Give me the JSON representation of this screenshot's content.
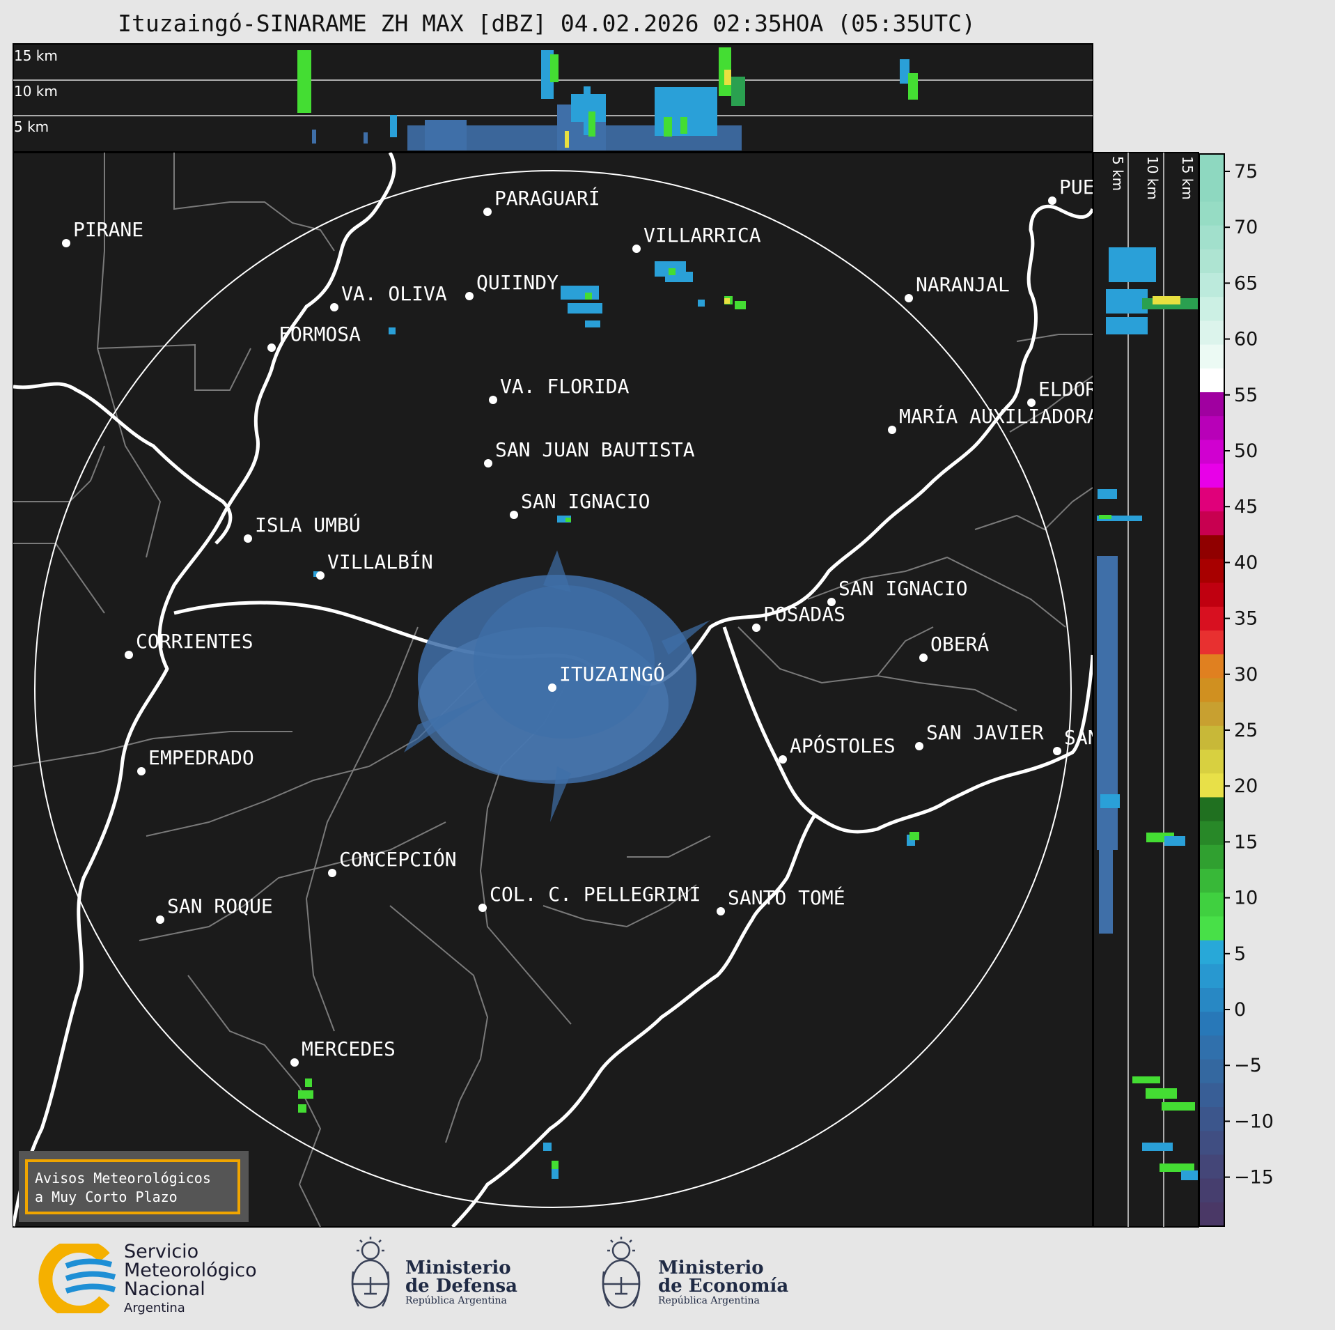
{
  "title": "Ituzaingó-SINARAME ZH MAX [dBZ] 04.02.2026 02:35HOA (05:35UTC)",
  "top_panel": {
    "height_labels": [
      "15 km",
      "10 km",
      "5 km"
    ]
  },
  "side_panel": {
    "height_labels": [
      "5 km",
      "10 km",
      "15 km"
    ]
  },
  "colorbar": {
    "ticks": [
      "75",
      "70",
      "65",
      "60",
      "55",
      "50",
      "45",
      "40",
      "35",
      "30",
      "25",
      "20",
      "15",
      "10",
      "5",
      "0",
      "−5",
      "−10",
      "−15"
    ],
    "unit": "dBZ"
  },
  "cities": [
    {
      "name": "PIRANE"
    },
    {
      "name": "PARAGUARÍ"
    },
    {
      "name": "VILLARRICA"
    },
    {
      "name": "QUIINDY"
    },
    {
      "name": "VA. OLIVA"
    },
    {
      "name": "FORMOSA"
    },
    {
      "name": "NARANJAL"
    },
    {
      "name": "VA. FLORIDA"
    },
    {
      "name": "ELDORADO"
    },
    {
      "name": "MARÍA AUXILIADORA"
    },
    {
      "name": "SAN JUAN BAUTISTA"
    },
    {
      "name": "SAN IGNACIO"
    },
    {
      "name": "ISLA UMBÚ"
    },
    {
      "name": "VILLALBÍN"
    },
    {
      "name": "SAN IGNACIO"
    },
    {
      "name": "POSADAS"
    },
    {
      "name": "CORRIENTES"
    },
    {
      "name": "ITUZAINGÓ"
    },
    {
      "name": "OBERÁ"
    },
    {
      "name": "APÓSTOLES"
    },
    {
      "name": "SAN JAVIER"
    },
    {
      "name": "SAN"
    },
    {
      "name": "EMPEDRADO"
    },
    {
      "name": "CONCEPCIÓN"
    },
    {
      "name": "COL. C. PELLEGRINI"
    },
    {
      "name": "SANTO TOMÉ"
    },
    {
      "name": "SAN ROQUE"
    },
    {
      "name": "MERCEDES"
    },
    {
      "name": "PUERTO"
    }
  ],
  "warning_box": {
    "line1": "Avisos Meteorológicos",
    "line2": "a Muy Corto Plazo",
    "border_color": "#f0a500"
  },
  "footer": {
    "smn": {
      "line1": "Servicio",
      "line2": "Meteorológico",
      "line3": "Nacional",
      "line4": "Argentina"
    },
    "defensa": {
      "line1": "Ministerio",
      "line2": "de Defensa",
      "line3": "República Argentina"
    },
    "economia": {
      "line1": "Ministerio",
      "line2": "de Economía",
      "line3": "República Argentina"
    }
  },
  "colors": {
    "map_background": "#1b1b1b",
    "page_background": "#e6e6e6",
    "river": "#ffffff",
    "borders": "#808080",
    "echo_weak": "#3f6fa8",
    "echo_blue": "#2aa0d8",
    "echo_green": "#44dd33",
    "echo_yellow": "#e8e040"
  }
}
